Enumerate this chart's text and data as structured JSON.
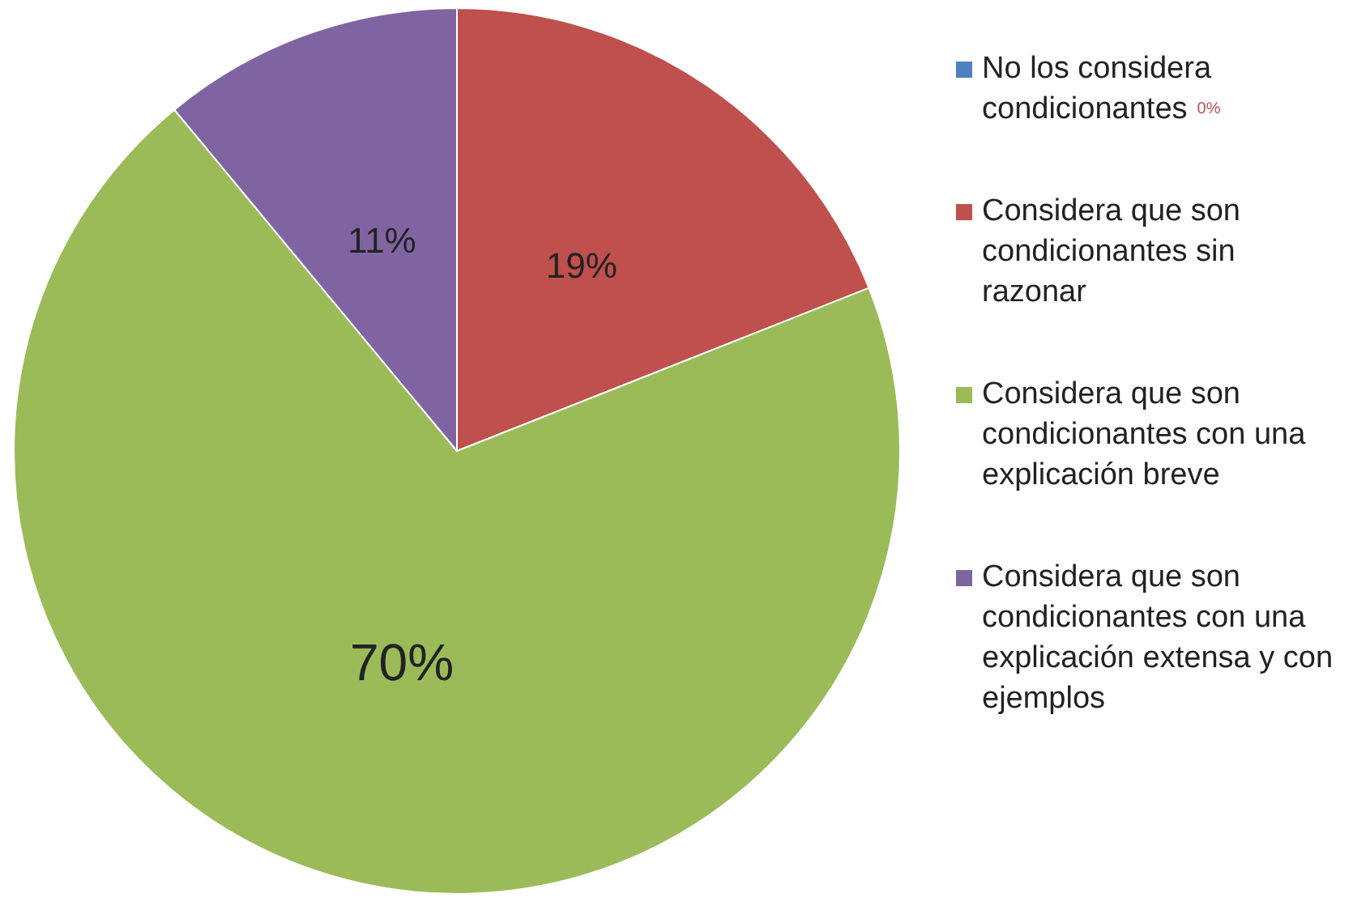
{
  "chart_data": {
    "type": "pie",
    "categories": [
      "No los considera condicionantes",
      "Considera que son condicionantes sin razonar",
      "Considera que son condicionantes con una explicación breve",
      "Considera que son condicionantes con una explicación extensa y con ejemplos"
    ],
    "values": [
      0,
      19,
      70,
      11
    ],
    "colors": [
      "#4f81bd",
      "#c0504d",
      "#9bbb59",
      "#8064a2"
    ],
    "value_labels": [
      "0%",
      "19%",
      "70%",
      "11%"
    ],
    "legend": "right"
  }
}
